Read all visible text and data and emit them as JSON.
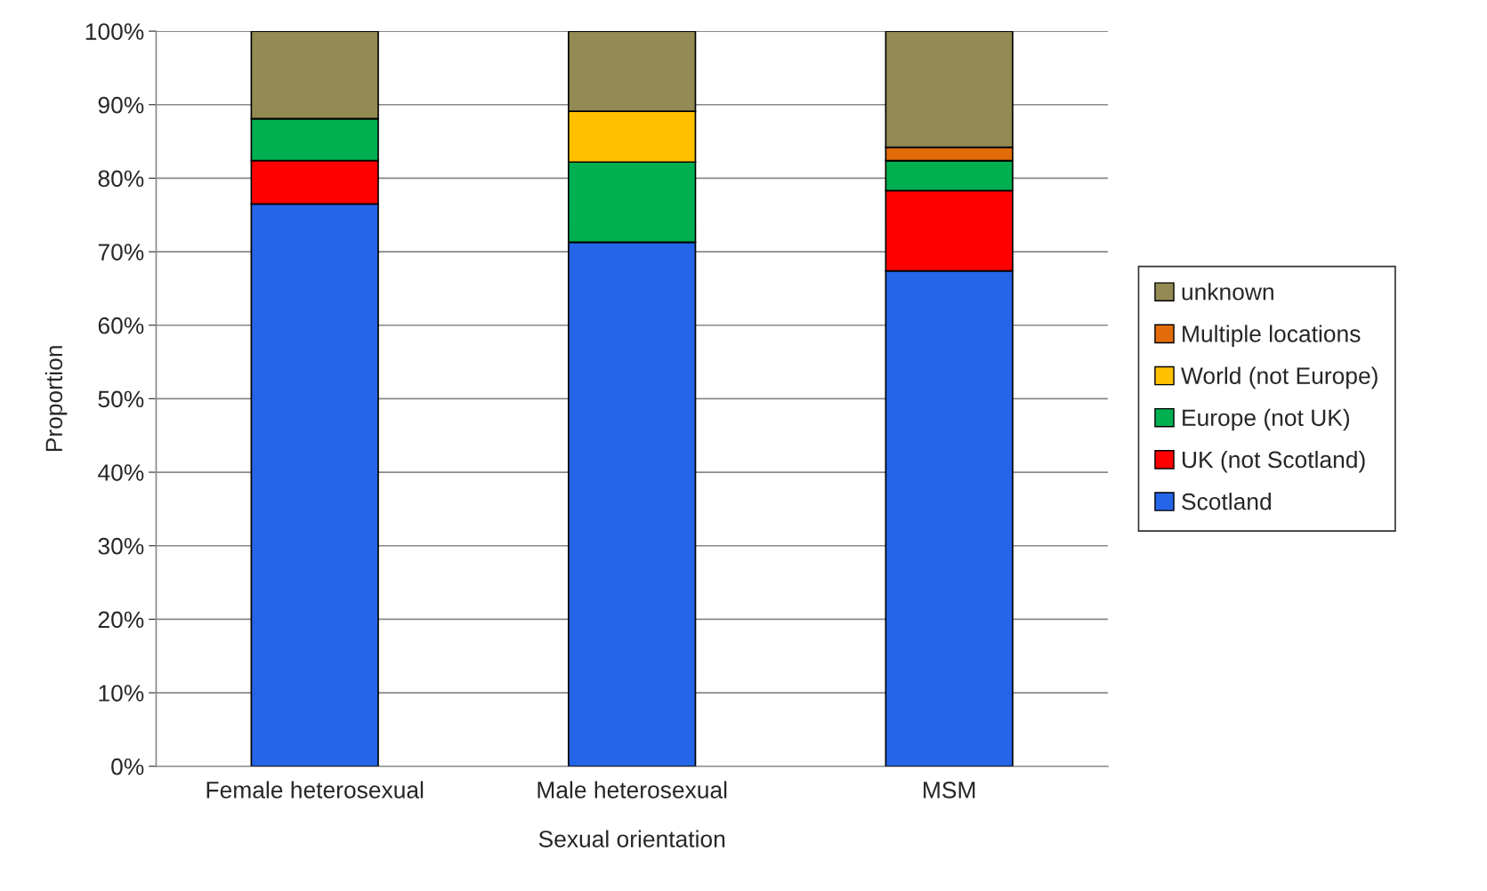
{
  "chart_data": {
    "type": "bar",
    "stacked": true,
    "xlabel": "Sexual orientation",
    "ylabel": "Proportion",
    "categories": [
      "Female heterosexual",
      "Male heterosexual",
      "MSM"
    ],
    "series": [
      {
        "name": "Scotland",
        "color": "#2565e8",
        "values": [
          76.5,
          71.3,
          67.4
        ]
      },
      {
        "name": "UK (not Scotland)",
        "color": "#ff0000",
        "values": [
          5.9,
          0,
          10.9
        ]
      },
      {
        "name": "Europe (not UK)",
        "color": "#00b050",
        "values": [
          5.7,
          10.9,
          4.1
        ]
      },
      {
        "name": "World (not Europe)",
        "color": "#ffc000",
        "values": [
          0,
          6.9,
          0
        ]
      },
      {
        "name": "Multiple locations",
        "color": "#e36c0a",
        "values": [
          0,
          0,
          1.8
        ]
      },
      {
        "name": "unknown",
        "color": "#948a54",
        "values": [
          11.9,
          10.9,
          15.8
        ]
      }
    ],
    "ylim": [
      0,
      100
    ],
    "yticks": [
      {
        "value": 0,
        "label": "0%"
      },
      {
        "value": 10,
        "label": "10%"
      },
      {
        "value": 20,
        "label": "20%"
      },
      {
        "value": 30,
        "label": "30%"
      },
      {
        "value": 40,
        "label": "40%"
      },
      {
        "value": 50,
        "label": "50%"
      },
      {
        "value": 60,
        "label": "60%"
      },
      {
        "value": 70,
        "label": "70%"
      },
      {
        "value": 80,
        "label": "80%"
      },
      {
        "value": 90,
        "label": "90%"
      },
      {
        "value": 100,
        "label": "100%"
      }
    ],
    "grid": "y",
    "legend": "right"
  }
}
